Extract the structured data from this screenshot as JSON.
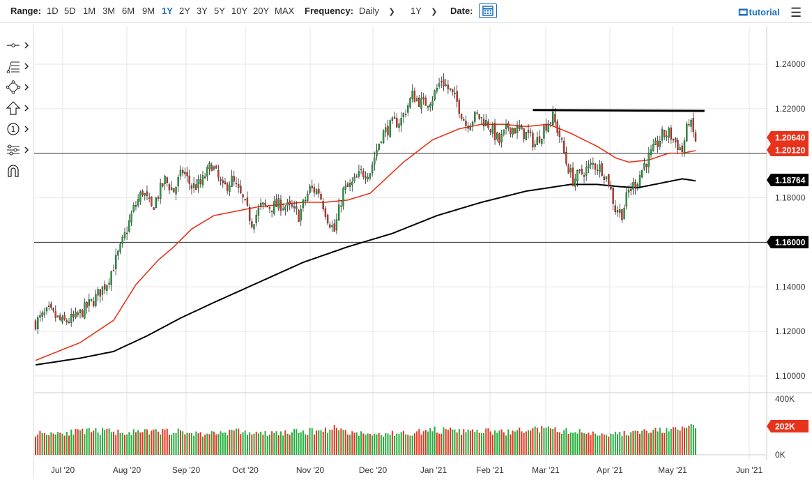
{
  "toolbar": {
    "range_label": "Range:",
    "ranges": [
      "1D",
      "5D",
      "1M",
      "3M",
      "6M",
      "9M",
      "1Y",
      "2Y",
      "3Y",
      "5Y",
      "10Y",
      "20Y",
      "MAX"
    ],
    "active_range": "1Y",
    "frequency_label": "Frequency:",
    "frequency_value": "Daily",
    "period_value": "1Y",
    "date_label": "Date:",
    "tutorial_label": "tutorial"
  },
  "tools": [
    "line-tool-icon",
    "fib-tool-icon",
    "shapes-tool-icon",
    "arrow-tool-icon",
    "annotation-tool-icon",
    "settings-tool-icon",
    "magnet-icon"
  ],
  "colors": {
    "up": "#1fae3b",
    "down": "#e8331c",
    "ma50": "#e8331c",
    "ma200": "#000000",
    "accent": "#1a6ec3"
  },
  "chart_data": {
    "type": "candlestick",
    "x_tick_labels": [
      "Jul '20",
      "Aug '20",
      "Sep '20",
      "Oct '20",
      "Nov '20",
      "Dec '20",
      "Jan '21",
      "Feb '21",
      "Mar '21",
      "Apr '21",
      "May '21",
      "Jun '21"
    ],
    "y_tick_labels": [
      "1.24000",
      "1.22000",
      "1.20000",
      "1.18000",
      "1.16000",
      "1.14000",
      "1.12000",
      "1.10000"
    ],
    "ylim": [
      1.094,
      1.246
    ],
    "volume_tick_labels": [
      "400K",
      "0K"
    ],
    "volume_ylim": [
      0,
      400
    ],
    "price_tags": [
      {
        "label": "1.20640",
        "value": 1.2064,
        "color": "#e8331c"
      },
      {
        "label": "1.20120",
        "value": 1.2012,
        "color": "#e8331c"
      },
      {
        "label": "1.18764",
        "value": 1.18764,
        "color": "#000000"
      },
      {
        "label": "1.16000",
        "value": 1.16,
        "color": "#000000"
      }
    ],
    "volume_tag": {
      "label": "202K",
      "color": "#e8331c"
    },
    "horizontal_lines": [
      1.2,
      1.16
    ],
    "resistance_line": {
      "start_index": 223,
      "end_index": 300,
      "value_start": 1.2194,
      "value_end": 1.219
    },
    "close_path": [
      [
        0,
        1.124
      ],
      [
        6,
        1.129
      ],
      [
        12,
        1.124
      ],
      [
        18,
        1.126
      ],
      [
        26,
        1.134
      ],
      [
        32,
        1.142
      ],
      [
        38,
        1.157
      ],
      [
        44,
        1.175
      ],
      [
        48,
        1.183
      ],
      [
        52,
        1.175
      ],
      [
        58,
        1.188
      ],
      [
        62,
        1.183
      ],
      [
        66,
        1.192
      ],
      [
        70,
        1.185
      ],
      [
        74,
        1.186
      ],
      [
        79,
        1.195
      ],
      [
        84,
        1.184
      ],
      [
        88,
        1.188
      ],
      [
        93,
        1.179
      ],
      [
        97,
        1.169
      ],
      [
        101,
        1.176
      ],
      [
        106,
        1.176
      ],
      [
        110,
        1.177
      ],
      [
        115,
        1.175
      ],
      [
        118,
        1.172
      ],
      [
        123,
        1.184
      ],
      [
        127,
        1.183
      ],
      [
        131,
        1.171
      ],
      [
        134,
        1.165
      ],
      [
        138,
        1.183
      ],
      [
        142,
        1.186
      ],
      [
        146,
        1.191
      ],
      [
        150,
        1.192
      ],
      [
        155,
        1.208
      ],
      [
        160,
        1.213
      ],
      [
        164,
        1.215
      ],
      [
        169,
        1.226
      ],
      [
        174,
        1.222
      ],
      [
        178,
        1.225
      ],
      [
        182,
        1.233
      ],
      [
        185,
        1.229
      ],
      [
        189,
        1.223
      ],
      [
        193,
        1.213
      ],
      [
        198,
        1.217
      ],
      [
        203,
        1.213
      ],
      [
        208,
        1.205
      ],
      [
        212,
        1.212
      ],
      [
        217,
        1.21
      ],
      [
        221,
        1.208
      ],
      [
        224,
        1.204
      ],
      [
        229,
        1.213
      ],
      [
        232,
        1.216
      ],
      [
        235,
        1.208
      ],
      [
        238,
        1.196
      ],
      [
        241,
        1.188
      ],
      [
        246,
        1.192
      ],
      [
        250,
        1.195
      ],
      [
        254,
        1.193
      ],
      [
        257,
        1.187
      ],
      [
        260,
        1.175
      ],
      [
        263,
        1.173
      ],
      [
        266,
        1.183
      ],
      [
        270,
        1.188
      ],
      [
        273,
        1.195
      ],
      [
        277,
        1.201
      ],
      [
        281,
        1.208
      ],
      [
        284,
        1.209
      ],
      [
        287,
        1.205
      ],
      [
        290,
        1.201
      ],
      [
        293,
        1.215
      ],
      [
        296,
        1.206
      ]
    ],
    "ma50_path": [
      [
        0,
        1.107
      ],
      [
        20,
        1.115
      ],
      [
        35,
        1.125
      ],
      [
        45,
        1.141
      ],
      [
        55,
        1.152
      ],
      [
        62,
        1.158
      ],
      [
        70,
        1.166
      ],
      [
        80,
        1.172
      ],
      [
        90,
        1.174
      ],
      [
        100,
        1.176
      ],
      [
        110,
        1.177
      ],
      [
        120,
        1.178
      ],
      [
        130,
        1.178
      ],
      [
        140,
        1.179
      ],
      [
        150,
        1.182
      ],
      [
        165,
        1.196
      ],
      [
        178,
        1.206
      ],
      [
        190,
        1.211
      ],
      [
        200,
        1.213
      ],
      [
        210,
        1.213
      ],
      [
        220,
        1.212
      ],
      [
        230,
        1.213
      ],
      [
        240,
        1.209
      ],
      [
        252,
        1.203
      ],
      [
        260,
        1.198
      ],
      [
        266,
        1.196
      ],
      [
        275,
        1.197
      ],
      [
        284,
        1.2
      ],
      [
        290,
        1.2
      ],
      [
        296,
        1.2012
      ]
    ],
    "ma200_path": [
      [
        0,
        1.105
      ],
      [
        20,
        1.108
      ],
      [
        35,
        1.111
      ],
      [
        50,
        1.118
      ],
      [
        65,
        1.126
      ],
      [
        80,
        1.133
      ],
      [
        100,
        1.142
      ],
      [
        120,
        1.151
      ],
      [
        140,
        1.158
      ],
      [
        160,
        1.164
      ],
      [
        180,
        1.172
      ],
      [
        200,
        1.178
      ],
      [
        220,
        1.183
      ],
      [
        240,
        1.186
      ],
      [
        252,
        1.186
      ],
      [
        262,
        1.185
      ],
      [
        270,
        1.1845
      ],
      [
        280,
        1.1865
      ],
      [
        290,
        1.1885
      ],
      [
        296,
        1.18764
      ]
    ],
    "volume_path": [
      [
        0,
        150
      ],
      [
        30,
        165
      ],
      [
        45,
        155
      ],
      [
        60,
        165
      ],
      [
        75,
        145
      ],
      [
        90,
        165
      ],
      [
        100,
        145
      ],
      [
        120,
        160
      ],
      [
        130,
        175
      ],
      [
        135,
        190
      ],
      [
        140,
        160
      ],
      [
        150,
        140
      ],
      [
        170,
        155
      ],
      [
        180,
        175
      ],
      [
        190,
        160
      ],
      [
        200,
        165
      ],
      [
        210,
        155
      ],
      [
        225,
        180
      ],
      [
        235,
        170
      ],
      [
        250,
        150
      ],
      [
        262,
        145
      ],
      [
        275,
        165
      ],
      [
        290,
        175
      ],
      [
        296,
        202
      ]
    ]
  }
}
